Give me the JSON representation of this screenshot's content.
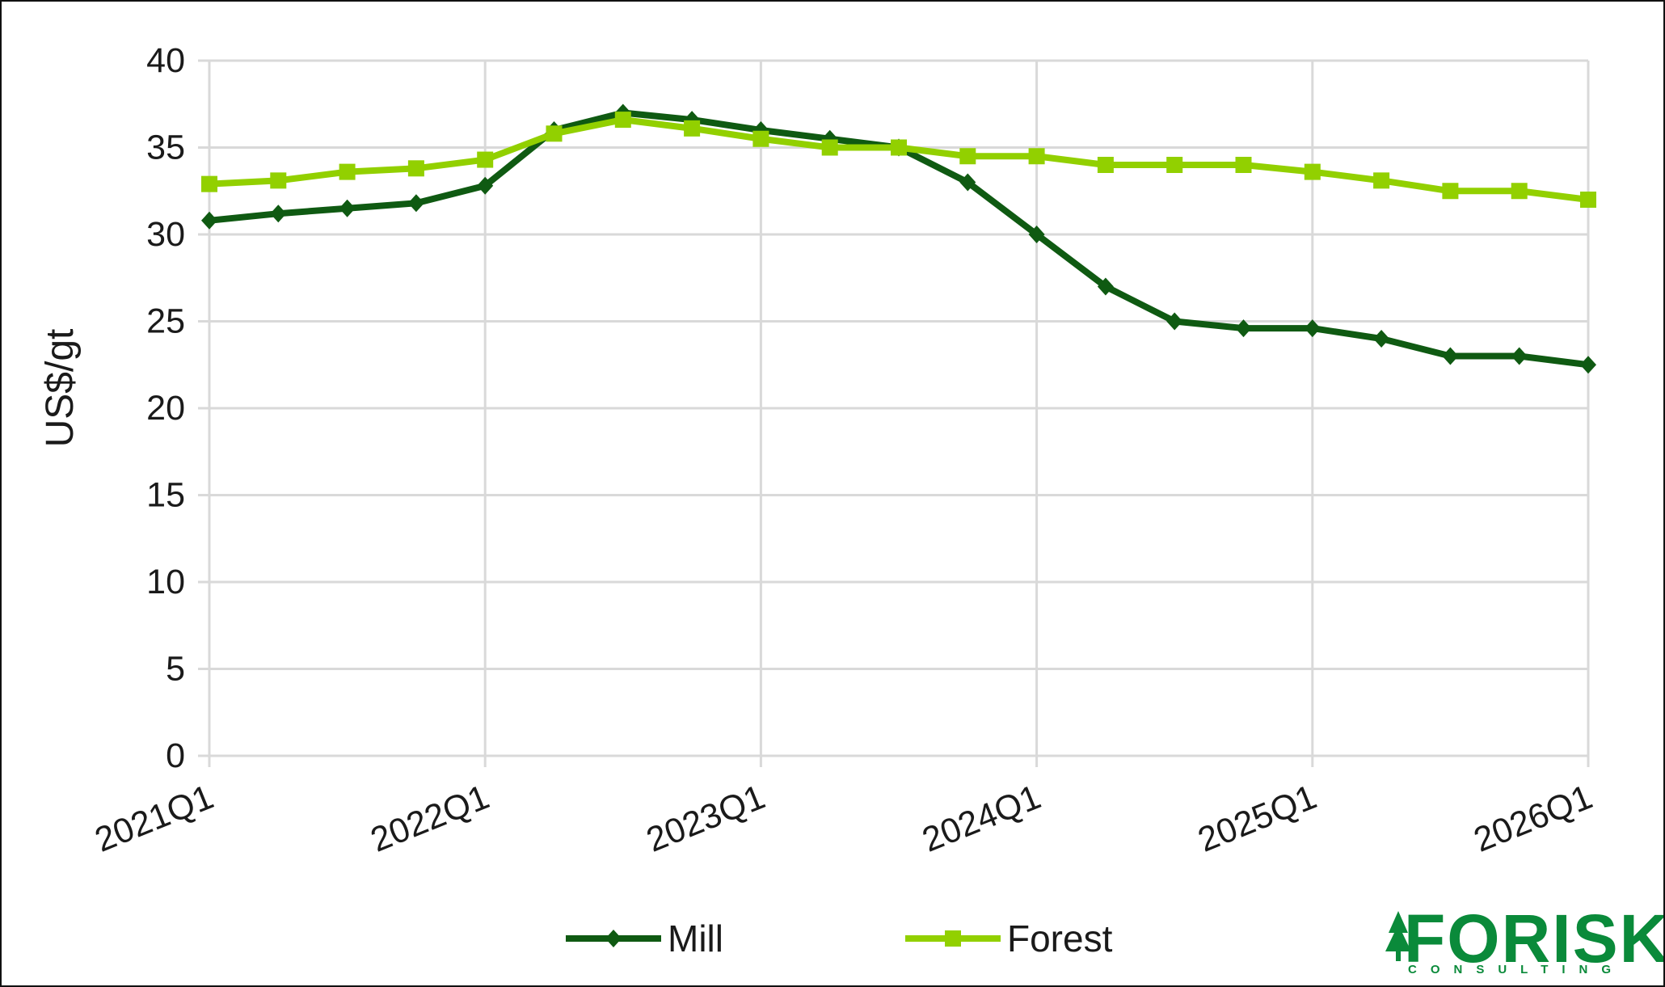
{
  "chart_data": {
    "type": "line",
    "title": "",
    "xlabel": "",
    "ylabel": "US$/gt",
    "ylim": [
      0,
      40
    ],
    "yticks": [
      0,
      5,
      10,
      15,
      20,
      25,
      30,
      35,
      40
    ],
    "x": [
      "2021Q1",
      "2021Q2",
      "2021Q3",
      "2021Q4",
      "2022Q1",
      "2022Q2",
      "2022Q3",
      "2022Q4",
      "2023Q1",
      "2023Q2",
      "2023Q3",
      "2023Q4",
      "2024Q1",
      "2024Q2",
      "2024Q3",
      "2024Q4",
      "2025Q1",
      "2025Q2",
      "2025Q3",
      "2025Q4",
      "2026Q1"
    ],
    "xtick_labels": [
      "2021Q1",
      "2022Q1",
      "2023Q1",
      "2024Q1",
      "2025Q1",
      "2026Q1"
    ],
    "grid": true,
    "legend_position": "bottom",
    "series": [
      {
        "name": "Mill",
        "color": "#0f5a12",
        "marker": "diamond",
        "values": [
          30.8,
          31.2,
          31.5,
          31.8,
          32.8,
          36.0,
          37.0,
          36.6,
          36.0,
          35.5,
          35.0,
          33.0,
          30.0,
          27.0,
          25.0,
          24.6,
          24.6,
          24.0,
          23.0,
          23.0,
          22.5
        ]
      },
      {
        "name": "Forest",
        "color": "#92d000",
        "marker": "square",
        "values": [
          32.9,
          33.1,
          33.6,
          33.8,
          34.3,
          35.8,
          36.6,
          36.1,
          35.5,
          35.0,
          35.0,
          34.5,
          34.5,
          34.0,
          34.0,
          34.0,
          33.6,
          33.1,
          32.5,
          32.5,
          32.0
        ]
      }
    ]
  },
  "logo": {
    "name": "FORISK",
    "subtitle": "CONSULTING",
    "icon": "tree-icon",
    "color": "#0a8a3a"
  }
}
